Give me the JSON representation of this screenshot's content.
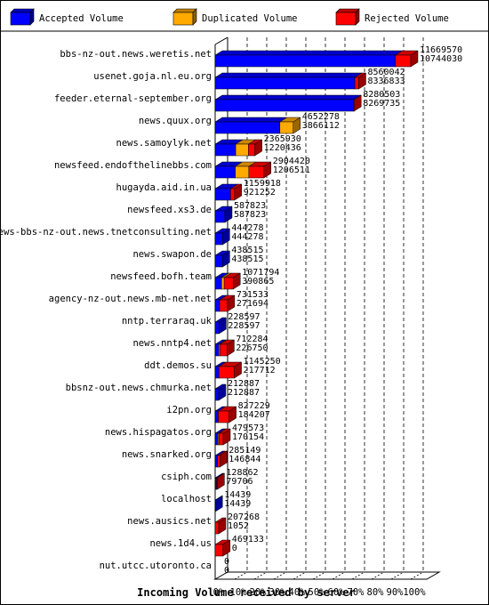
{
  "chart_data": {
    "type": "bar",
    "orientation": "horizontal",
    "stacked": true,
    "legend_position": "top",
    "xlabel": "Incoming Volume received by server",
    "xlim": [
      0,
      100
    ],
    "x_ticks": [
      "0%",
      "10%",
      "20%",
      "30%",
      "40%",
      "50%",
      "60%",
      "70%",
      "80%",
      "90%",
      "100%"
    ],
    "series": [
      {
        "name": "Accepted Volume",
        "color": "#0000ff"
      },
      {
        "name": "Duplicated Volume",
        "color": "#ffaa00"
      },
      {
        "name": "Rejected Volume",
        "color": "#ff0000"
      }
    ],
    "rows": [
      {
        "server": "bbs-nz-out.news.weretis.net",
        "total": "11669570",
        "accepted": "10744030",
        "total_pct": 100.0,
        "accepted_pct": 92.1,
        "duplicated_pct": 0.0
      },
      {
        "server": "usenet.goja.nl.eu.org",
        "total": "8560042",
        "accepted": "8336833",
        "total_pct": 73.4,
        "accepted_pct": 71.4,
        "duplicated_pct": 0.0
      },
      {
        "server": "feeder.eternal-september.org",
        "total": "8280503",
        "accepted": "8269735",
        "total_pct": 71.0,
        "accepted_pct": 70.9,
        "duplicated_pct": 0.0
      },
      {
        "server": "news.quux.org",
        "total": "4652278",
        "accepted": "3866112",
        "total_pct": 39.9,
        "accepted_pct": 33.1,
        "duplicated_pct": 6.8
      },
      {
        "server": "news.samoylyk.net",
        "total": "2365930",
        "accepted": "1220436",
        "total_pct": 20.3,
        "accepted_pct": 10.5,
        "duplicated_pct": 6.5
      },
      {
        "server": "newsfeed.endofthelinebbs.com",
        "total": "2904420",
        "accepted": "1206511",
        "total_pct": 24.9,
        "accepted_pct": 10.3,
        "duplicated_pct": 6.9
      },
      {
        "server": "hugayda.aid.in.ua",
        "total": "1159918",
        "accepted": "921252",
        "total_pct": 9.9,
        "accepted_pct": 7.9,
        "duplicated_pct": 0.0
      },
      {
        "server": "newsfeed.xs3.de",
        "total": "587823",
        "accepted": "587823",
        "total_pct": 5.0,
        "accepted_pct": 5.0,
        "duplicated_pct": 0.0
      },
      {
        "server": "news-bbs-nz-out.news.tnetconsulting.net",
        "total": "444278",
        "accepted": "444278",
        "total_pct": 3.8,
        "accepted_pct": 3.8,
        "duplicated_pct": 0.0
      },
      {
        "server": "news.swapon.de",
        "total": "438515",
        "accepted": "438515",
        "total_pct": 3.8,
        "accepted_pct": 3.8,
        "duplicated_pct": 0.0
      },
      {
        "server": "newsfeed.bofh.team",
        "total": "1071794",
        "accepted": "390865",
        "total_pct": 9.2,
        "accepted_pct": 3.3,
        "duplicated_pct": 1.3
      },
      {
        "server": "agency-nz-out.news.mb-net.net",
        "total": "731533",
        "accepted": "271694",
        "total_pct": 6.3,
        "accepted_pct": 2.3,
        "duplicated_pct": 0.0
      },
      {
        "server": "nntp.terraraq.uk",
        "total": "228597",
        "accepted": "228597",
        "total_pct": 2.0,
        "accepted_pct": 2.0,
        "duplicated_pct": 0.0
      },
      {
        "server": "news.nntp4.net",
        "total": "712284",
        "accepted": "226750",
        "total_pct": 6.1,
        "accepted_pct": 1.9,
        "duplicated_pct": 0.6
      },
      {
        "server": "ddt.demos.su",
        "total": "1145250",
        "accepted": "217712",
        "total_pct": 9.8,
        "accepted_pct": 1.9,
        "duplicated_pct": 0.0
      },
      {
        "server": "bbsnz-out.news.chmurka.net",
        "total": "212887",
        "accepted": "212887",
        "total_pct": 1.8,
        "accepted_pct": 1.8,
        "duplicated_pct": 0.0
      },
      {
        "server": "i2pn.org",
        "total": "827229",
        "accepted": "184207",
        "total_pct": 7.1,
        "accepted_pct": 1.6,
        "duplicated_pct": 0.0
      },
      {
        "server": "news.hispagatos.org",
        "total": "479573",
        "accepted": "170154",
        "total_pct": 4.1,
        "accepted_pct": 1.5,
        "duplicated_pct": 0.5
      },
      {
        "server": "news.snarked.org",
        "total": "285149",
        "accepted": "146844",
        "total_pct": 2.4,
        "accepted_pct": 1.3,
        "duplicated_pct": 0.0
      },
      {
        "server": "csiph.com",
        "total": "128862",
        "accepted": "79706",
        "total_pct": 1.1,
        "accepted_pct": 0.7,
        "duplicated_pct": 0.0
      },
      {
        "server": "localhost",
        "total": "14439",
        "accepted": "14439",
        "total_pct": 0.1,
        "accepted_pct": 0.1,
        "duplicated_pct": 0.0
      },
      {
        "server": "news.ausics.net",
        "total": "207268",
        "accepted": "1052",
        "total_pct": 1.8,
        "accepted_pct": 0.0,
        "duplicated_pct": 0.0
      },
      {
        "server": "news.1d4.us",
        "total": "469133",
        "accepted": "0",
        "total_pct": 4.0,
        "accepted_pct": 0.0,
        "duplicated_pct": 0.0
      },
      {
        "server": "nut.utcc.utoronto.ca",
        "total": "0",
        "accepted": "0",
        "total_pct": 0.0,
        "accepted_pct": 0.0,
        "duplicated_pct": 0.0
      }
    ]
  }
}
